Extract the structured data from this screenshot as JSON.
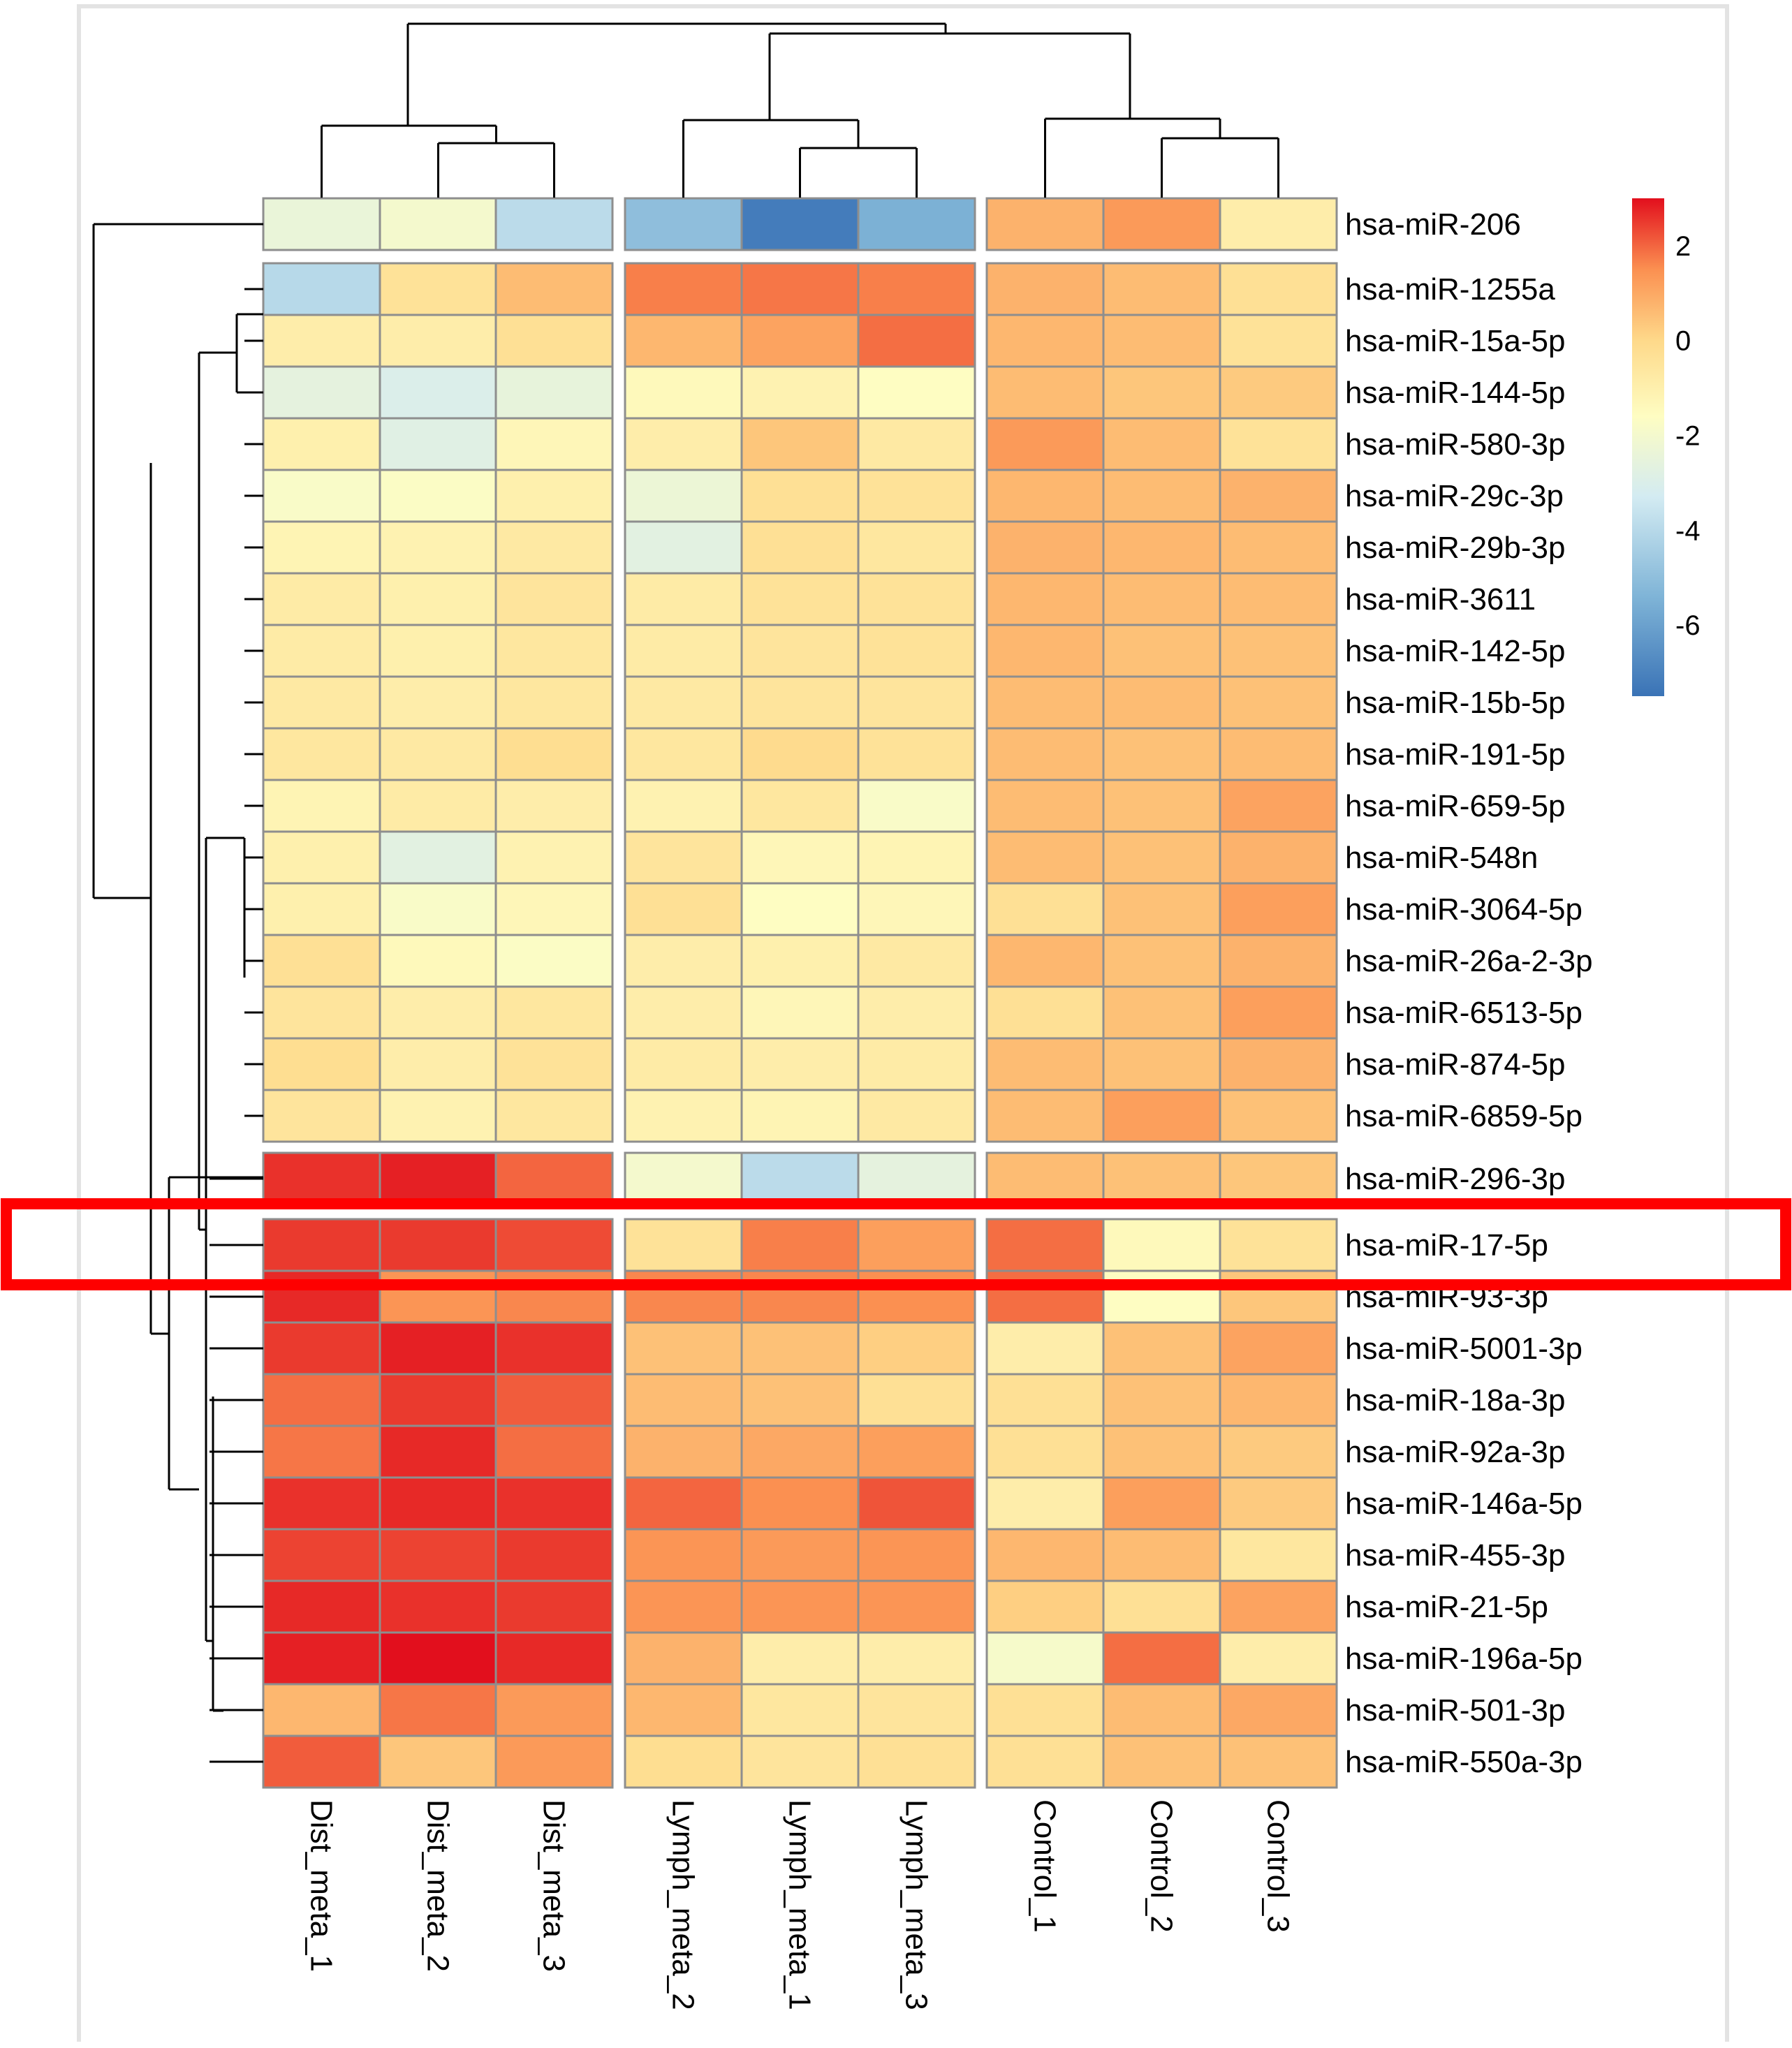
{
  "chart_data": {
    "type": "heatmap",
    "title": "",
    "columns": [
      "Dist_meta_1",
      "Dist_meta_2",
      "Dist_meta_3",
      "Lymph_meta_2",
      "Lymph_meta_1",
      "Lymph_meta_3",
      "Control_1",
      "Control_2",
      "Control_3"
    ],
    "rows": [
      "hsa-miR-206",
      "hsa-miR-1255a",
      "hsa-miR-15a-5p",
      "hsa-miR-144-5p",
      "hsa-miR-580-3p",
      "hsa-miR-29c-3p",
      "hsa-miR-29b-3p",
      "hsa-miR-3611",
      "hsa-miR-142-5p",
      "hsa-miR-15b-5p",
      "hsa-miR-191-5p",
      "hsa-miR-659-5p",
      "hsa-miR-548n",
      "hsa-miR-3064-5p",
      "hsa-miR-26a-2-3p",
      "hsa-miR-6513-5p",
      "hsa-miR-874-5p",
      "hsa-miR-6859-5p",
      "hsa-miR-296-3p",
      "hsa-miR-17-5p",
      "hsa-miR-93-3p",
      "hsa-miR-5001-3p",
      "hsa-miR-18a-3p",
      "hsa-miR-92a-3p",
      "hsa-miR-146a-5p",
      "hsa-miR-455-3p",
      "hsa-miR-21-5p",
      "hsa-miR-196a-5p",
      "hsa-miR-501-3p",
      "hsa-miR-550a-3p"
    ],
    "row_groups": [
      1,
      17,
      1,
      11
    ],
    "column_groups": [
      3,
      3,
      3
    ],
    "values": [
      [
        -2.4,
        -2.0,
        -3.9,
        -5.0,
        -7.2,
        -5.5,
        0.8,
        1.3,
        -0.9
      ],
      [
        -4.0,
        -0.4,
        0.6,
        1.7,
        1.8,
        1.7,
        0.8,
        0.6,
        -0.3
      ],
      [
        -0.9,
        -0.9,
        -0.3,
        0.7,
        1.1,
        1.9,
        0.7,
        0.6,
        -0.4
      ],
      [
        -2.6,
        -3.0,
        -2.5,
        -1.4,
        -1.1,
        -1.6,
        0.6,
        0.4,
        0.3
      ],
      [
        -1.0,
        -2.8,
        -1.3,
        -0.9,
        0.4,
        -0.7,
        1.3,
        0.6,
        -0.4
      ],
      [
        -1.8,
        -1.7,
        -1.0,
        -2.3,
        -0.3,
        -0.4,
        0.7,
        0.6,
        0.8
      ],
      [
        -1.2,
        -1.1,
        -0.7,
        -2.7,
        -0.3,
        -0.6,
        0.8,
        0.7,
        0.6
      ],
      [
        -0.8,
        -1.0,
        -0.5,
        -0.8,
        -0.4,
        -0.4,
        0.7,
        0.6,
        0.6
      ],
      [
        -0.8,
        -1.0,
        -0.6,
        -0.8,
        -0.5,
        -0.4,
        0.7,
        0.5,
        0.5
      ],
      [
        -0.7,
        -0.9,
        -0.6,
        -0.7,
        -0.5,
        -0.5,
        0.6,
        0.6,
        0.5
      ],
      [
        -0.6,
        -0.7,
        -0.2,
        -0.6,
        -0.1,
        -0.4,
        0.6,
        0.5,
        0.6
      ],
      [
        -1.2,
        -0.8,
        -0.9,
        -1.1,
        -0.6,
        -1.8,
        0.6,
        0.5,
        1.1
      ],
      [
        -1.0,
        -2.7,
        -1.1,
        -0.5,
        -1.3,
        -1.2,
        0.6,
        0.5,
        0.8
      ],
      [
        -1.0,
        -1.8,
        -1.3,
        -0.3,
        -1.6,
        -1.3,
        -0.3,
        0.5,
        1.2
      ],
      [
        -0.3,
        -1.4,
        -1.7,
        -0.9,
        -1.0,
        -0.7,
        0.7,
        0.5,
        0.8
      ],
      [
        -0.5,
        -0.9,
        -0.6,
        -0.9,
        -1.3,
        -0.9,
        -0.3,
        0.5,
        1.2
      ],
      [
        -0.2,
        -0.9,
        -0.4,
        -0.8,
        -0.9,
        -0.8,
        0.6,
        0.5,
        0.8
      ],
      [
        -0.5,
        -1.1,
        -0.6,
        -1.1,
        -1.2,
        -0.7,
        0.6,
        1.2,
        0.5
      ],
      [
        2.6,
        2.8,
        2.0,
        -2.0,
        -3.9,
        -2.6,
        0.6,
        0.5,
        0.4
      ],
      [
        2.5,
        2.5,
        2.3,
        -0.4,
        1.7,
        1.2,
        1.9,
        -1.4,
        -0.4
      ],
      [
        2.7,
        1.4,
        1.6,
        1.6,
        1.6,
        1.5,
        1.9,
        -1.6,
        0.4
      ],
      [
        2.5,
        2.8,
        2.6,
        0.5,
        0.5,
        0.2,
        -0.9,
        0.5,
        1.1
      ],
      [
        1.9,
        2.5,
        2.1,
        0.6,
        0.5,
        -0.3,
        -0.3,
        0.5,
        0.7
      ],
      [
        1.8,
        2.7,
        1.9,
        0.8,
        1.0,
        1.2,
        -0.3,
        0.5,
        0.3
      ],
      [
        2.6,
        2.7,
        2.6,
        2.0,
        1.5,
        2.2,
        -0.9,
        1.2,
        0.3
      ],
      [
        2.4,
        2.4,
        2.5,
        1.4,
        1.3,
        1.4,
        0.7,
        0.6,
        -0.6
      ],
      [
        2.7,
        2.6,
        2.5,
        1.4,
        1.4,
        1.4,
        0.2,
        -0.3,
        1.1
      ],
      [
        2.8,
        3.0,
        2.7,
        0.8,
        -0.9,
        -0.9,
        -1.9,
        1.9,
        -0.9
      ],
      [
        0.7,
        1.8,
        1.3,
        0.7,
        -0.6,
        -0.5,
        -0.3,
        0.6,
        1.0
      ],
      [
        2.1,
        0.4,
        1.3,
        -0.2,
        -0.5,
        -0.3,
        -0.3,
        0.5,
        0.5
      ]
    ],
    "color_scale": {
      "min": -7.5,
      "max": 3,
      "ticks": [
        2,
        0,
        -2,
        -4,
        -6
      ],
      "tick_labels": [
        "2",
        "0",
        "-2",
        "-4",
        "-6"
      ],
      "stops": [
        {
          "value": -7.5,
          "color": "#3a73b6"
        },
        {
          "value": -5.4,
          "color": "#7fb4d7"
        },
        {
          "value": -3.3,
          "color": "#d3ebf2"
        },
        {
          "value": -1.6,
          "color": "#fefdc2"
        },
        {
          "value": 0.0,
          "color": "#fed98a"
        },
        {
          "value": 1.5,
          "color": "#fb9051"
        },
        {
          "value": 3.0,
          "color": "#e20f1d"
        }
      ]
    },
    "highlight": {
      "row": "hsa-miR-17-5p",
      "color": "#fe0000"
    },
    "cell_border_color": "#8e8e8e"
  }
}
